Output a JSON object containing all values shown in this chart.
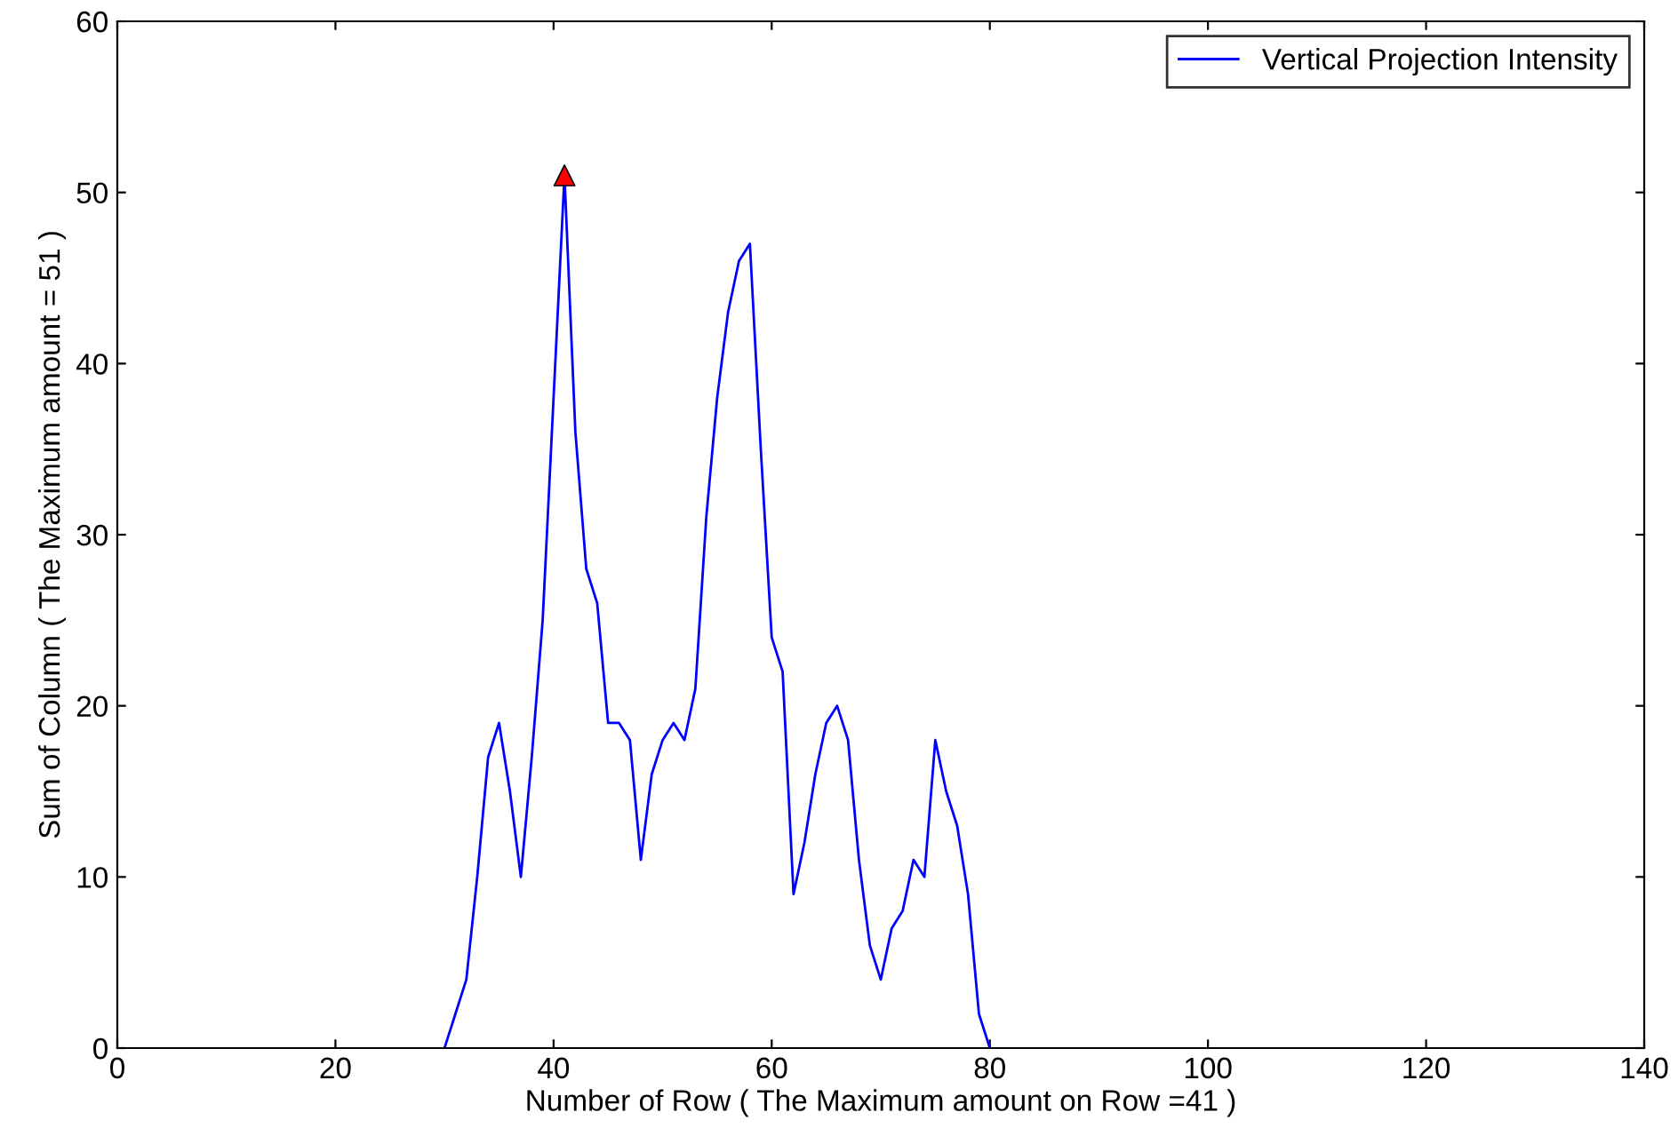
{
  "chart_data": {
    "type": "line",
    "xlabel": "Number of Row ( The Maximum amount on Row =41 )",
    "ylabel": "Sum of Column ( The Maximum amount = 51 )",
    "xlim": [
      0,
      140
    ],
    "xticks": [
      0,
      20,
      40,
      60,
      80,
      100,
      120,
      140
    ],
    "ylim": [
      0,
      60
    ],
    "yticks": [
      0,
      10,
      20,
      30,
      40,
      50,
      60
    ],
    "grid": false,
    "legend": "top right",
    "series": [
      {
        "name": "Vertical Projection Intensity",
        "color": "#0000ff",
        "marker": "none",
        "x": [
          30,
          31,
          32,
          33,
          34,
          35,
          36,
          37,
          38,
          39,
          40,
          41,
          42,
          43,
          44,
          45,
          46,
          47,
          48,
          49,
          50,
          51,
          52,
          53,
          54,
          55,
          56,
          57,
          58,
          59,
          60,
          61,
          62,
          63,
          64,
          65,
          66,
          67,
          68,
          69,
          70,
          71,
          72,
          73,
          74,
          75,
          76,
          77,
          78,
          79,
          80
        ],
        "values": [
          0,
          2,
          4,
          10,
          17,
          19,
          15,
          10,
          17,
          25,
          38,
          51,
          36,
          28,
          26,
          19,
          19,
          18,
          11,
          16,
          18,
          19,
          18,
          21,
          31,
          38,
          43,
          46,
          47,
          35,
          24,
          22,
          9,
          12,
          16,
          19,
          20,
          18,
          11,
          6,
          4,
          7,
          8,
          11,
          10,
          18,
          15,
          13,
          9,
          2,
          0
        ]
      },
      {
        "color": "#ff0000",
        "type": "scatter",
        "marker": "triangle",
        "x": [
          41
        ],
        "values": [
          51
        ]
      }
    ]
  }
}
